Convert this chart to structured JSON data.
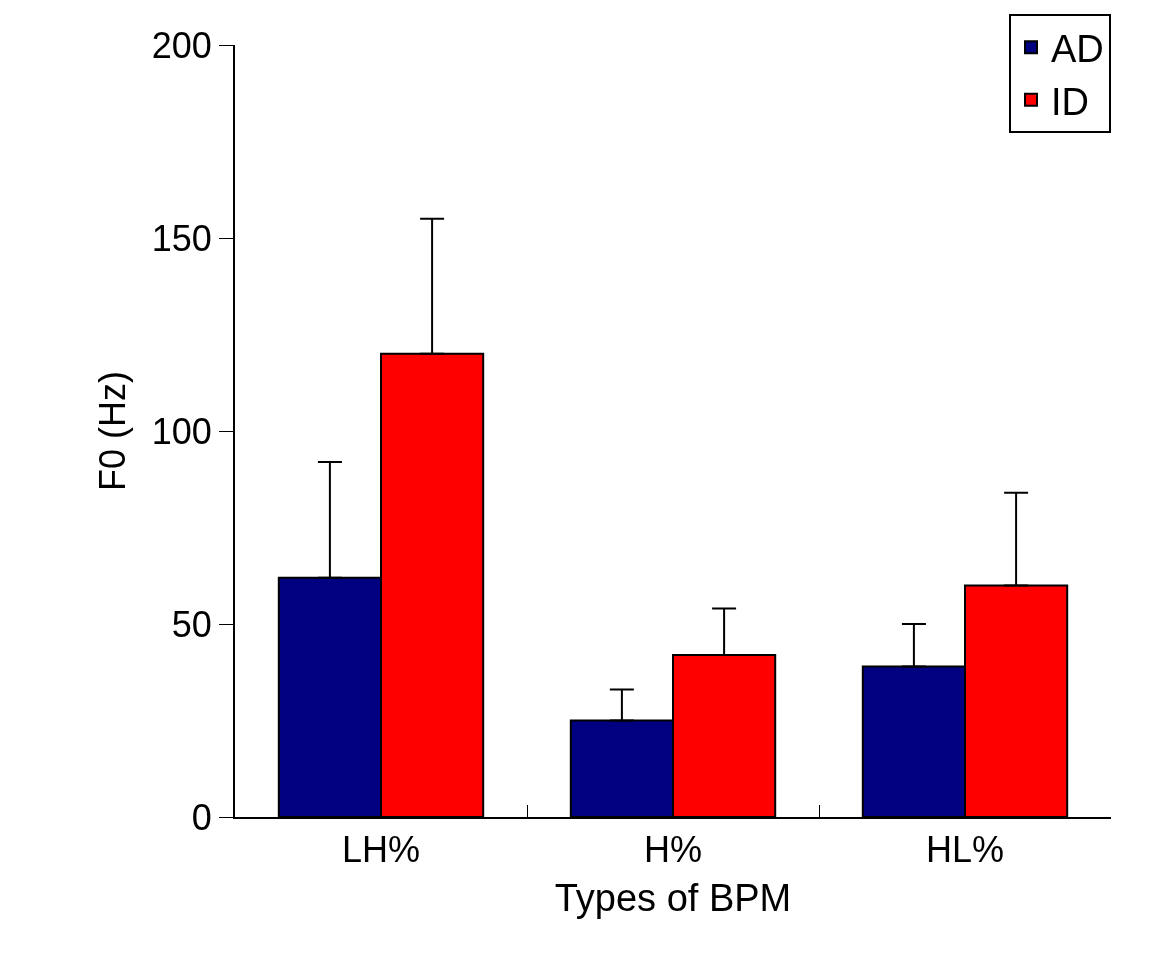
{
  "chart_data": {
    "type": "bar",
    "xlabel": "Types of BPM",
    "ylabel": "F0 (Hz)",
    "categories": [
      "LH%",
      "H%",
      "HL%"
    ],
    "series": [
      {
        "name": "AD",
        "color": "#000080",
        "values": [
          62,
          25,
          39
        ],
        "errors": [
          [
            62,
            92
          ],
          [
            25,
            33
          ],
          [
            39,
            50
          ]
        ]
      },
      {
        "name": "ID",
        "color": "#ff0000",
        "values": [
          120,
          42,
          60
        ],
        "errors": [
          [
            120,
            155
          ],
          [
            42,
            54
          ],
          [
            60,
            84
          ]
        ]
      }
    ],
    "ylim": [
      0,
      200
    ],
    "yticks": [
      0,
      50,
      100,
      150,
      200
    ],
    "legend": "top right"
  }
}
